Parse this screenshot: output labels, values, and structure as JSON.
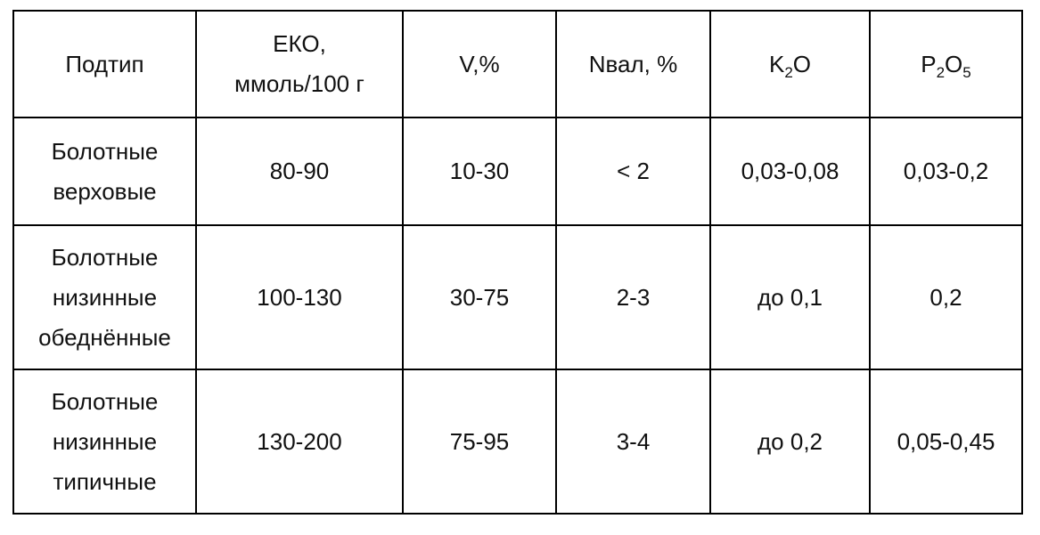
{
  "table": {
    "headers": [
      {
        "text": "Подтип"
      },
      {
        "text": "ЕКО,\nммоль/100 г"
      },
      {
        "text": "V,%"
      },
      {
        "text": "Nвал, %"
      },
      {
        "k": "K",
        "k_sub": "2",
        "o": "O"
      },
      {
        "p": "P",
        "p_sub": "2",
        "o": "O",
        "o_sub": "5"
      }
    ],
    "rows": [
      [
        "Болотные\nверховые",
        "80-90",
        "10-30",
        "< 2",
        "0,03-0,08",
        "0,03-0,2"
      ],
      [
        "Болотные\nнизинные\nобеднённые",
        "100-130",
        "30-75",
        "2-3",
        "до 0,1",
        "0,2"
      ],
      [
        "Болотные\nнизинные\nтипичные",
        "130-200",
        "75-95",
        "3-4",
        "до 0,2",
        "0,05-0,45"
      ]
    ]
  }
}
